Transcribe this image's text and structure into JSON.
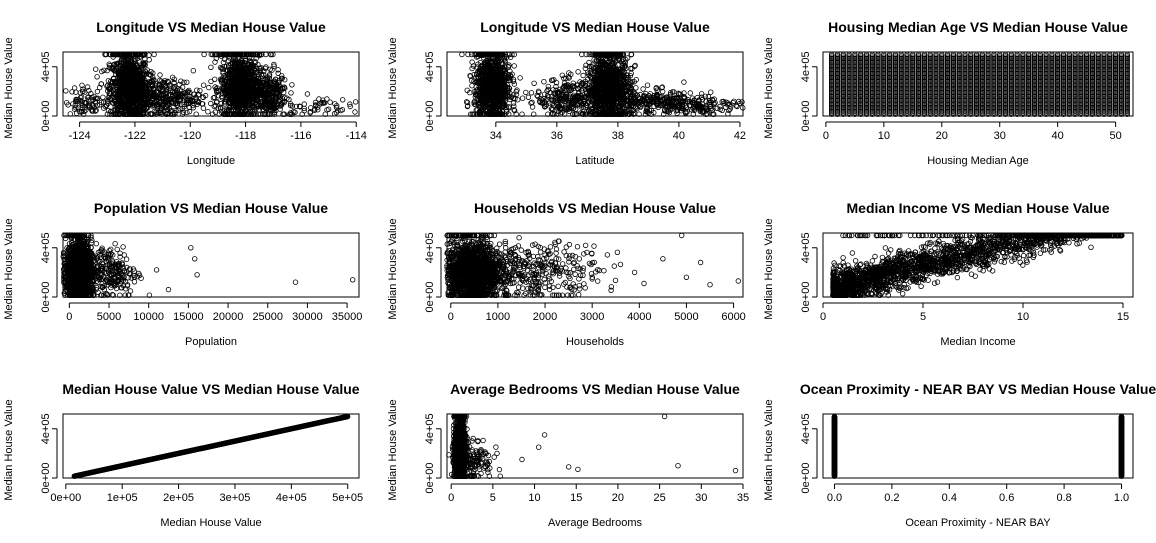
{
  "chart_data": [
    {
      "type": "scatter",
      "title": "Longitude VS Median House Value",
      "xlabel": "Longitude",
      "ylabel": "Median House Value",
      "xlim": [
        -124.6,
        -113.9
      ],
      "ylim": [
        0,
        520000
      ],
      "xticks": [
        -124,
        -122,
        -120,
        -118,
        -116,
        -114
      ],
      "xticklabels": [
        "-124",
        "-122",
        "-120",
        "-118",
        "-116",
        "-114"
      ],
      "yticks": [
        0,
        400000
      ],
      "yticklabels": [
        "0e+00",
        "4e+05"
      ],
      "clusters": [
        {
          "x": -122.2,
          "xsd": 0.35,
          "y": 230000,
          "ysd": 130000,
          "n": 900
        },
        {
          "x": -118.2,
          "xsd": 0.35,
          "y": 230000,
          "ysd": 130000,
          "n": 900
        },
        {
          "x": -121.0,
          "xsd": 0.7,
          "y": 150000,
          "ysd": 80000,
          "n": 350
        },
        {
          "x": -117.2,
          "xsd": 0.35,
          "y": 180000,
          "ysd": 100000,
          "n": 300
        },
        {
          "x": -123.7,
          "xsd": 0.4,
          "y": 120000,
          "ysd": 60000,
          "n": 80
        },
        {
          "x": -115.5,
          "xsd": 0.6,
          "y": 80000,
          "ysd": 40000,
          "n": 50
        },
        {
          "x": -122.3,
          "xsd": 0.4,
          "y": 500001,
          "ysd": 0,
          "n": 80
        },
        {
          "x": -118.3,
          "xsd": 0.5,
          "y": 500001,
          "ysd": 0,
          "n": 80
        }
      ]
    },
    {
      "type": "scatter",
      "title": "Longitude VS Median House Value",
      "xlabel": "Latitude",
      "ylabel": "Median House Value",
      "xlim": [
        32.4,
        42.1
      ],
      "ylim": [
        0,
        520000
      ],
      "xticks": [
        34,
        36,
        38,
        40,
        42
      ],
      "xticklabels": [
        "34",
        "36",
        "38",
        "40",
        "42"
      ],
      "yticks": [
        0,
        400000
      ],
      "yticklabels": [
        "0e+00",
        "4e+05"
      ],
      "clusters": [
        {
          "x": 33.9,
          "xsd": 0.3,
          "y": 230000,
          "ysd": 130000,
          "n": 900
        },
        {
          "x": 37.7,
          "xsd": 0.35,
          "y": 230000,
          "ysd": 130000,
          "n": 900
        },
        {
          "x": 36.5,
          "xsd": 0.6,
          "y": 140000,
          "ysd": 80000,
          "n": 300
        },
        {
          "x": 39.2,
          "xsd": 0.8,
          "y": 110000,
          "ysd": 50000,
          "n": 250
        },
        {
          "x": 40.8,
          "xsd": 0.6,
          "y": 90000,
          "ysd": 40000,
          "n": 120
        },
        {
          "x": 33.8,
          "xsd": 0.3,
          "y": 500001,
          "ysd": 0,
          "n": 80
        },
        {
          "x": 37.7,
          "xsd": 0.3,
          "y": 500001,
          "ysd": 0,
          "n": 80
        }
      ]
    },
    {
      "type": "scatter",
      "title": "Housing Median Age VS Median House Value",
      "xlabel": "Housing Median Age",
      "ylabel": "Median House Value",
      "xlim": [
        -0.5,
        53
      ],
      "ylim": [
        0,
        520000
      ],
      "xticks": [
        0,
        10,
        20,
        30,
        40,
        50
      ],
      "xticklabels": [
        "0",
        "10",
        "20",
        "30",
        "40",
        "50"
      ],
      "yticks": [
        0,
        400000
      ],
      "yticklabels": [
        "0e+00",
        "4e+05"
      ],
      "discrete_x": [
        1,
        52
      ],
      "y_range": [
        15000,
        500001
      ],
      "n_per_x": 45
    },
    {
      "type": "scatter",
      "title": "Population VS Median House Value",
      "xlabel": "Population",
      "ylabel": "Median House Value",
      "xlim": [
        -800,
        36500
      ],
      "ylim": [
        0,
        520000
      ],
      "xticks": [
        0,
        5000,
        10000,
        15000,
        20000,
        25000,
        30000,
        35000
      ],
      "xticklabels": [
        "0",
        "5000",
        "10000",
        "15000",
        "20000",
        "25000",
        "30000",
        "35000"
      ],
      "yticks": [
        0,
        400000
      ],
      "yticklabels": [
        "0e+00",
        "4e+05"
      ],
      "clusters": [
        {
          "x": 1200,
          "xsd": 800,
          "y": 200000,
          "ysd": 120000,
          "n": 1600
        },
        {
          "x": 5000,
          "xsd": 1800,
          "y": 200000,
          "ysd": 110000,
          "n": 250
        },
        {
          "x": 800,
          "xsd": 600,
          "y": 500001,
          "ysd": 0,
          "n": 60
        }
      ],
      "outliers": [
        [
          11000,
          220000
        ],
        [
          12500,
          60000
        ],
        [
          15300,
          400000
        ],
        [
          16100,
          180000
        ],
        [
          15800,
          310000
        ],
        [
          28500,
          120000
        ],
        [
          35700,
          140000
        ]
      ]
    },
    {
      "type": "scatter",
      "title": "Households VS Median House Value",
      "xlabel": "Households",
      "ylabel": "Median House Value",
      "xlim": [
        -80,
        6200
      ],
      "ylim": [
        0,
        520000
      ],
      "xticks": [
        0,
        1000,
        2000,
        3000,
        4000,
        5000,
        6000
      ],
      "xticklabels": [
        "0",
        "1000",
        "2000",
        "3000",
        "4000",
        "5000",
        "6000"
      ],
      "yticks": [
        0,
        400000
      ],
      "yticklabels": [
        "0e+00",
        "4e+05"
      ],
      "clusters": [
        {
          "x": 450,
          "xsd": 300,
          "y": 200000,
          "ysd": 120000,
          "n": 1600
        },
        {
          "x": 1800,
          "xsd": 700,
          "y": 210000,
          "ysd": 110000,
          "n": 350
        },
        {
          "x": 300,
          "xsd": 250,
          "y": 500001,
          "ysd": 0,
          "n": 60
        }
      ],
      "outliers": [
        [
          3900,
          200000
        ],
        [
          4100,
          110000
        ],
        [
          4500,
          310000
        ],
        [
          4900,
          500001
        ],
        [
          5000,
          160000
        ],
        [
          5300,
          280000
        ],
        [
          5500,
          100000
        ],
        [
          6100,
          130000
        ]
      ]
    },
    {
      "type": "scatter",
      "title": "Median Income VS Median House Value",
      "xlabel": "Median Income",
      "ylabel": "Median House Value",
      "xlim": [
        0,
        15.5
      ],
      "ylim": [
        0,
        520000
      ],
      "xticks": [
        0,
        5,
        10,
        15
      ],
      "xticklabels": [
        "0",
        "5",
        "10",
        "15"
      ],
      "yticks": [
        0,
        400000
      ],
      "yticklabels": [
        "0e+00",
        "4e+05"
      ],
      "trend": {
        "slope": 42000,
        "intercept": 45000,
        "noise": 70000,
        "xmin": 0.5,
        "xmax": 15,
        "n": 2200,
        "cap": 500001
      }
    },
    {
      "type": "line",
      "title": "Median House Value VS Median House Value",
      "xlabel": "Median House Value",
      "ylabel": "Median House Value",
      "xlim": [
        -5000,
        520000
      ],
      "ylim": [
        0,
        520000
      ],
      "xticks": [
        0,
        100000,
        200000,
        300000,
        400000,
        500000
      ],
      "xticklabels": [
        "0e+00",
        "1e+05",
        "2e+05",
        "3e+05",
        "4e+05",
        "5e+05"
      ],
      "yticks": [
        0,
        400000
      ],
      "yticklabels": [
        "0e+00",
        "4e+05"
      ],
      "identity": {
        "from": 15000,
        "to": 500001,
        "n": 600
      }
    },
    {
      "type": "scatter",
      "title": "Average Bedrooms VS Median House Value",
      "xlabel": "Average Bedrooms",
      "ylabel": "Median House Value",
      "xlim": [
        -0.5,
        35
      ],
      "ylim": [
        0,
        520000
      ],
      "xticks": [
        0,
        5,
        10,
        15,
        20,
        25,
        30,
        35
      ],
      "xticklabels": [
        "0",
        "5",
        "10",
        "15",
        "20",
        "25",
        "30",
        "35"
      ],
      "yticks": [
        0,
        400000
      ],
      "yticklabels": [
        "0e+00",
        "4e+05"
      ],
      "clusters": [
        {
          "x": 1.05,
          "xsd": 0.3,
          "y": 210000,
          "ysd": 120000,
          "n": 1500
        },
        {
          "x": 2.5,
          "xsd": 1.2,
          "y": 150000,
          "ysd": 100000,
          "n": 150
        },
        {
          "x": 1.05,
          "xsd": 0.3,
          "y": 500001,
          "ysd": 0,
          "n": 60
        }
      ],
      "outliers": [
        [
          5.5,
          200000
        ],
        [
          8.5,
          150000
        ],
        [
          10.5,
          250000
        ],
        [
          11.2,
          350000
        ],
        [
          14.1,
          90000
        ],
        [
          15.2,
          70000
        ],
        [
          25.6,
          500001
        ],
        [
          27.2,
          100000
        ],
        [
          34.1,
          60000
        ]
      ]
    },
    {
      "type": "scatter",
      "title": "Ocean Proximity - NEAR BAY VS Median House Value",
      "xlabel": "Ocean Proximity - NEAR BAY",
      "ylabel": "Median House Value",
      "xlim": [
        -0.04,
        1.04
      ],
      "ylim": [
        0,
        520000
      ],
      "xticks": [
        0,
        0.2,
        0.4,
        0.6,
        0.8,
        1.0
      ],
      "xticklabels": [
        "0.0",
        "0.2",
        "0.4",
        "0.6",
        "0.8",
        "1.0"
      ],
      "yticks": [
        0,
        400000
      ],
      "yticklabels": [
        "0e+00",
        "4e+05"
      ],
      "discrete_x": [
        0,
        1
      ],
      "y_range": [
        15000,
        500001
      ],
      "n_per_x": 300
    }
  ]
}
